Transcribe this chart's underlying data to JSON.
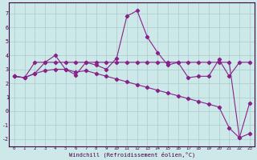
{
  "xlabel": "Windchill (Refroidissement éolien,°C)",
  "bg_color": "#cce8e8",
  "grid_color": "#aacccc",
  "line_color": "#882288",
  "marker": "D",
  "markersize": 2.2,
  "linewidth": 0.8,
  "xlim": [
    -0.5,
    23.5
  ],
  "ylim": [
    -2.5,
    7.8
  ],
  "xticks": [
    0,
    1,
    2,
    3,
    4,
    5,
    6,
    7,
    8,
    9,
    10,
    11,
    12,
    13,
    14,
    15,
    16,
    17,
    18,
    19,
    20,
    21,
    22,
    23
  ],
  "yticks": [
    -2,
    -1,
    0,
    1,
    2,
    3,
    4,
    5,
    6,
    7
  ],
  "series": [
    [
      2.5,
      2.4,
      2.7,
      3.5,
      4.0,
      3.0,
      2.6,
      3.5,
      3.3,
      3.0,
      3.8,
      6.8,
      7.2,
      5.3,
      4.2,
      3.3,
      3.5,
      2.4,
      2.5,
      2.5,
      3.7,
      2.5,
      3.5,
      3.5
    ],
    [
      2.5,
      2.4,
      3.5,
      3.5,
      3.5,
      3.5,
      3.5,
      3.5,
      3.5,
      3.5,
      3.5,
      3.5,
      3.5,
      3.5,
      3.5,
      3.5,
      3.5,
      3.5,
      3.5,
      3.5,
      3.5,
      3.5,
      -1.9,
      -1.6
    ],
    [
      2.5,
      2.4,
      2.7,
      2.9,
      3.0,
      3.0,
      2.8,
      2.9,
      2.7,
      2.5,
      2.3,
      2.1,
      1.9,
      1.7,
      1.5,
      1.3,
      1.1,
      0.9,
      0.7,
      0.5,
      0.3,
      -1.2,
      -1.9,
      0.6
    ]
  ]
}
